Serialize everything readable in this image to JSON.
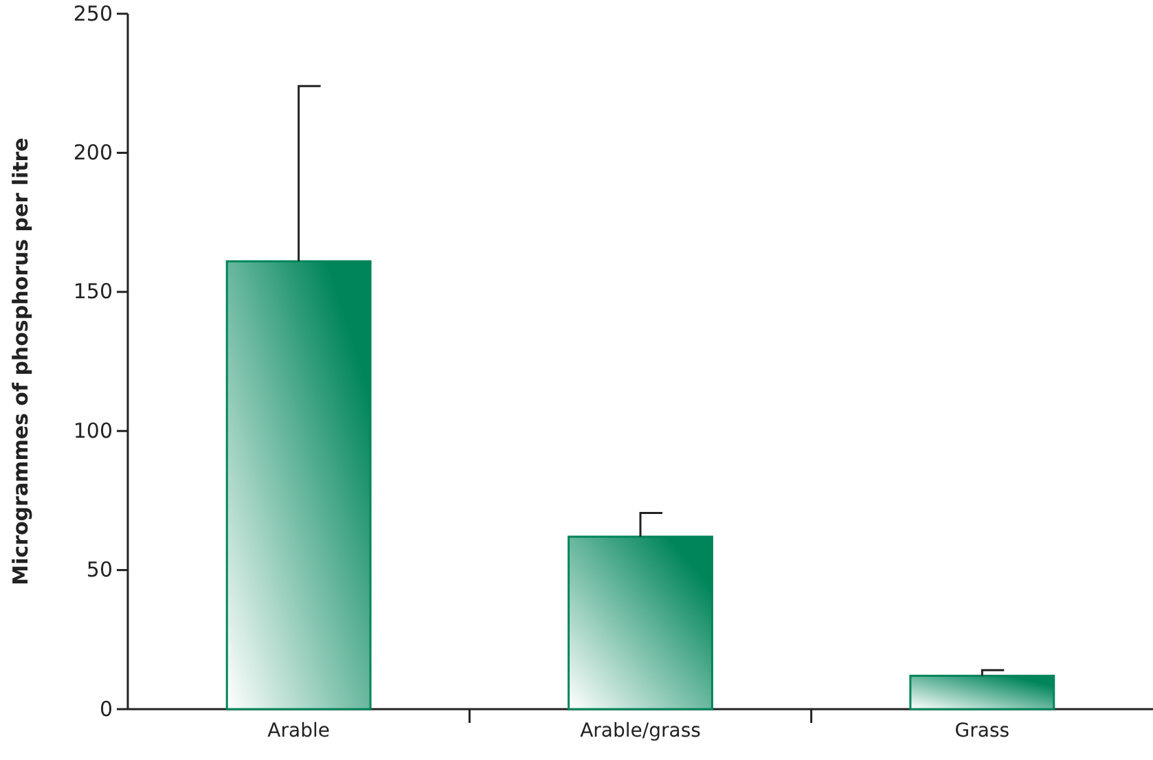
{
  "chart_data": {
    "type": "bar",
    "ylabel": "Microgrammes of phosphorus per litre",
    "categories": [
      "Arable",
      "Arable/grass",
      "Grass"
    ],
    "values": [
      161,
      62,
      12
    ],
    "color": "#00855a",
    "errors": [
      [
        161,
        224
      ],
      [
        62,
        70.5
      ],
      [
        12,
        14
      ]
    ],
    "ylim": [
      0,
      250
    ],
    "yticks": [
      0,
      50,
      100,
      150,
      200,
      250
    ],
    "grid": false
  }
}
